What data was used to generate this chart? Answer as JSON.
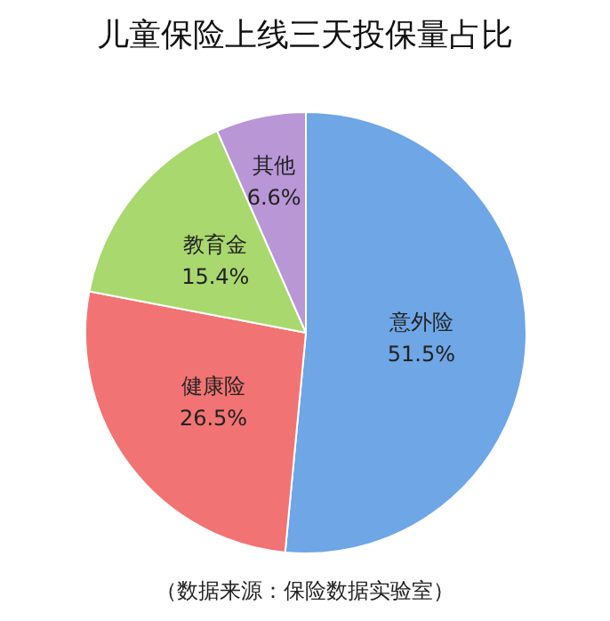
{
  "chart_data": {
    "type": "pie",
    "title": "儿童保险上线三天投保量占比",
    "categories": [
      "意外险",
      "健康险",
      "教育金",
      "其他"
    ],
    "values": [
      51.5,
      26.5,
      15.4,
      6.6
    ],
    "value_labels": [
      "51.5%",
      "26.5%",
      "15.4%",
      "6.6%"
    ],
    "colors": [
      "#6ea6e6",
      "#f27373",
      "#a9d86e",
      "#b996d6"
    ],
    "annotations": [
      "（数据来源：保险数据实验室）"
    ],
    "legend": false
  }
}
